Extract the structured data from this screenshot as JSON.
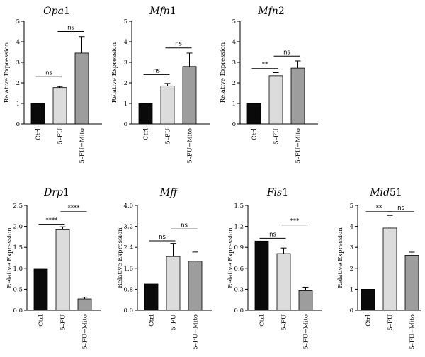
{
  "chart_data": [
    {
      "type": "bar",
      "title": "Opa1",
      "ylabel": "Relative Expression",
      "ylim": [
        0,
        5
      ],
      "yticks": [
        "0",
        "1",
        "2",
        "3",
        "4",
        "5"
      ],
      "categories": [
        "Ctrl",
        "5–FU",
        "5–FU+Mito"
      ],
      "values": [
        1.0,
        1.77,
        3.45
      ],
      "errors": [
        0,
        0.05,
        0.8
      ],
      "colors": [
        "#0a0a0a",
        "#dcdcdc",
        "#9d9d9d"
      ],
      "comparisons": [
        {
          "from": 0,
          "to": 1,
          "label": "ns",
          "y": 2.3
        },
        {
          "from": 1,
          "to": 2,
          "label": "ns",
          "y": 4.5
        }
      ]
    },
    {
      "type": "bar",
      "title": "Mfn1",
      "ylabel": "Relative Expression",
      "ylim": [
        0,
        5
      ],
      "yticks": [
        "0",
        "1",
        "2",
        "3",
        "4",
        "5"
      ],
      "categories": [
        "Ctrl",
        "5–FU",
        "5–FU+Mito"
      ],
      "values": [
        1.0,
        1.85,
        2.8
      ],
      "errors": [
        0,
        0.12,
        0.65
      ],
      "colors": [
        "#0a0a0a",
        "#dcdcdc",
        "#9d9d9d"
      ],
      "comparisons": [
        {
          "from": 0,
          "to": 1,
          "label": "ns",
          "y": 2.4
        },
        {
          "from": 1,
          "to": 2,
          "label": "ns",
          "y": 3.7
        }
      ]
    },
    {
      "type": "bar",
      "title": "Mfn2",
      "ylabel": "Relative Expression",
      "ylim": [
        0,
        5
      ],
      "yticks": [
        "0",
        "1",
        "2",
        "3",
        "4",
        "5"
      ],
      "categories": [
        "Ctrl",
        "5–FU",
        "5–FU+Mito"
      ],
      "values": [
        1.0,
        2.35,
        2.72
      ],
      "errors": [
        0,
        0.15,
        0.35
      ],
      "colors": [
        "#0a0a0a",
        "#dcdcdc",
        "#9d9d9d"
      ],
      "comparisons": [
        {
          "from": 0,
          "to": 1,
          "label": "**",
          "y": 2.7
        },
        {
          "from": 1,
          "to": 2,
          "label": "ns",
          "y": 3.3
        }
      ]
    },
    {
      "type": "bar",
      "title": "Drp1",
      "ylabel": "Relative Expression",
      "ylim": [
        0,
        2.5
      ],
      "yticks": [
        "0.0",
        "0.5",
        "1.0",
        "1.5",
        "2.0",
        "2.5"
      ],
      "categories": [
        "Ctrl",
        "5–FU",
        "5–FU+Mito"
      ],
      "values": [
        0.98,
        1.92,
        0.27
      ],
      "errors": [
        0,
        0.07,
        0.04
      ],
      "colors": [
        "#0a0a0a",
        "#dcdcdc",
        "#9d9d9d"
      ],
      "comparisons": [
        {
          "from": 0,
          "to": 1,
          "label": "****",
          "y": 2.05
        },
        {
          "from": 1,
          "to": 2,
          "label": "****",
          "y": 2.35
        }
      ]
    },
    {
      "type": "bar",
      "title": "Mff",
      "ylabel": "Relative Expression",
      "ylim": [
        0,
        4.0
      ],
      "yticks": [
        "0.0",
        "0.8",
        "1.6",
        "2.4",
        "3.2",
        "4.0"
      ],
      "categories": [
        "Ctrl",
        "5–FU",
        "5–FU+Mito"
      ],
      "values": [
        1.0,
        2.05,
        1.87
      ],
      "errors": [
        0,
        0.5,
        0.35
      ],
      "colors": [
        "#0a0a0a",
        "#dcdcdc",
        "#9d9d9d"
      ],
      "comparisons": [
        {
          "from": 0,
          "to": 1,
          "label": "ns",
          "y": 2.65
        },
        {
          "from": 1,
          "to": 2,
          "label": "ns",
          "y": 3.1
        }
      ]
    },
    {
      "type": "bar",
      "title": "Fis1",
      "ylabel": "Relative Expression",
      "ylim": [
        0,
        1.5
      ],
      "yticks": [
        "0.0",
        "0.3",
        "0.6",
        "0.9",
        "1.2",
        "1.5"
      ],
      "categories": [
        "Ctrl",
        "5–FU",
        "5–FU+Mito"
      ],
      "values": [
        0.99,
        0.81,
        0.28
      ],
      "errors": [
        0,
        0.08,
        0.05
      ],
      "colors": [
        "#0a0a0a",
        "#dcdcdc",
        "#9d9d9d"
      ],
      "comparisons": [
        {
          "from": 0,
          "to": 1,
          "label": "ns",
          "y": 1.03
        },
        {
          "from": 1,
          "to": 2,
          "label": "***",
          "y": 1.22
        }
      ]
    },
    {
      "type": "bar",
      "title": "Mid51",
      "ylabel": "Relative Expression",
      "ylim": [
        0,
        5
      ],
      "yticks": [
        "0",
        "1",
        "2",
        "3",
        "4",
        "5"
      ],
      "categories": [
        "Ctrl",
        "5–FU",
        "5–FU+Mito"
      ],
      "values": [
        1.0,
        3.92,
        2.62
      ],
      "errors": [
        0,
        0.6,
        0.15
      ],
      "colors": [
        "#0a0a0a",
        "#dcdcdc",
        "#9d9d9d"
      ],
      "comparisons": [
        {
          "from": 0,
          "to": 1,
          "label": "**",
          "y": 4.7
        },
        {
          "from": 1,
          "to": 2,
          "label": "ns",
          "y": 4.7
        }
      ]
    }
  ]
}
